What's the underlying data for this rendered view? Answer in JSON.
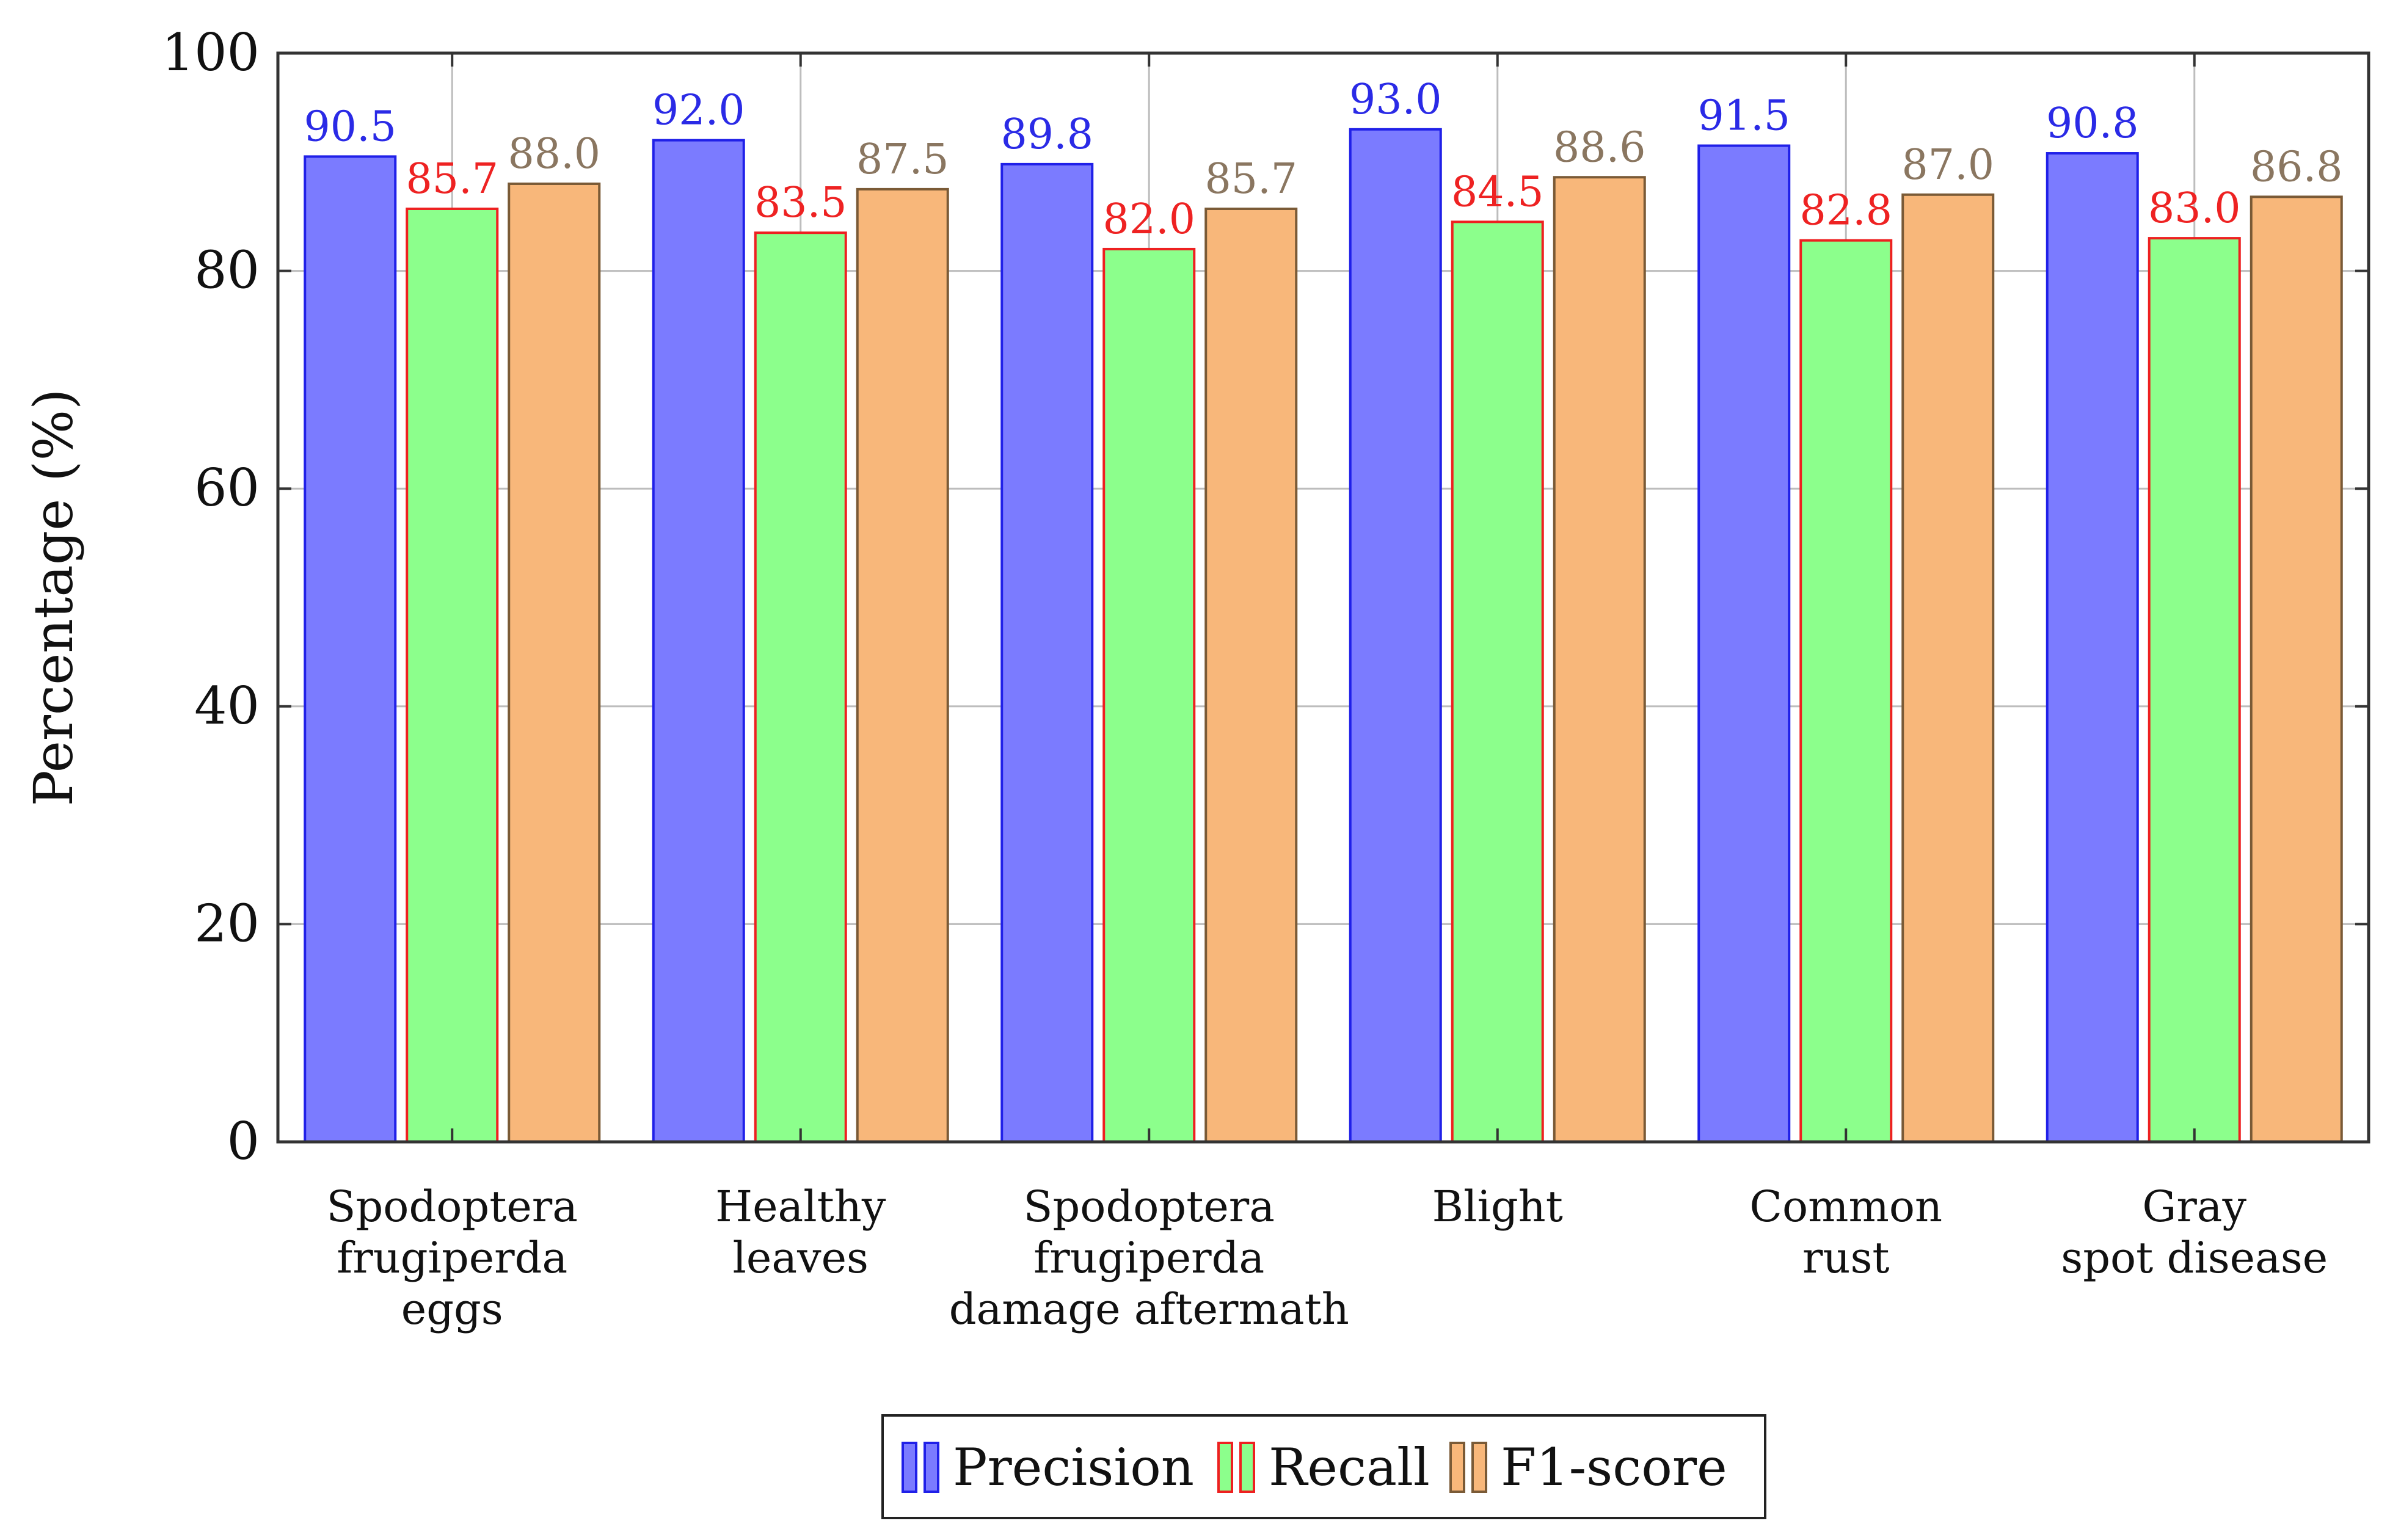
{
  "chart_data": {
    "type": "bar",
    "title": "",
    "xlabel": "",
    "ylabel": "Percentage (%)",
    "ylim": [
      0,
      100
    ],
    "yticks": [
      0,
      20,
      40,
      60,
      80,
      100
    ],
    "grid": true,
    "legend_position": "bottom-center",
    "categories": [
      [
        "Spodoptera",
        "frugiperda",
        "eggs"
      ],
      [
        "Healthy",
        "leaves"
      ],
      [
        "Spodoptera",
        "frugiperda",
        "damage aftermath"
      ],
      [
        "Blight"
      ],
      [
        "Common",
        "rust"
      ],
      [
        "Gray",
        "spot disease"
      ]
    ],
    "series": [
      {
        "name": "Precision",
        "fill": "#7b7bff",
        "stroke": "#2020e8",
        "label_color": "#2a2ae6",
        "values": [
          90.5,
          92.0,
          89.8,
          93.0,
          91.5,
          90.8
        ],
        "labels": [
          "90.5",
          "92.0",
          "89.8",
          "93.0",
          "91.5",
          "90.8"
        ]
      },
      {
        "name": "Recall",
        "fill": "#8cff8c",
        "stroke": "#ee2020",
        "label_color": "#ee2222",
        "values": [
          85.7,
          83.5,
          82.0,
          84.5,
          82.8,
          83.0
        ],
        "labels": [
          "85.7",
          "83.5",
          "82.0",
          "84.5",
          "82.8",
          "83.0"
        ]
      },
      {
        "name": "F1-score",
        "fill": "#f8b77a",
        "stroke": "#7a5a36",
        "label_color": "#8a7660",
        "values": [
          88.0,
          87.5,
          85.7,
          88.6,
          87.0,
          86.8
        ],
        "labels": [
          "88.0",
          "87.5",
          "85.7",
          "88.6",
          "87.0",
          "86.8"
        ]
      }
    ]
  }
}
